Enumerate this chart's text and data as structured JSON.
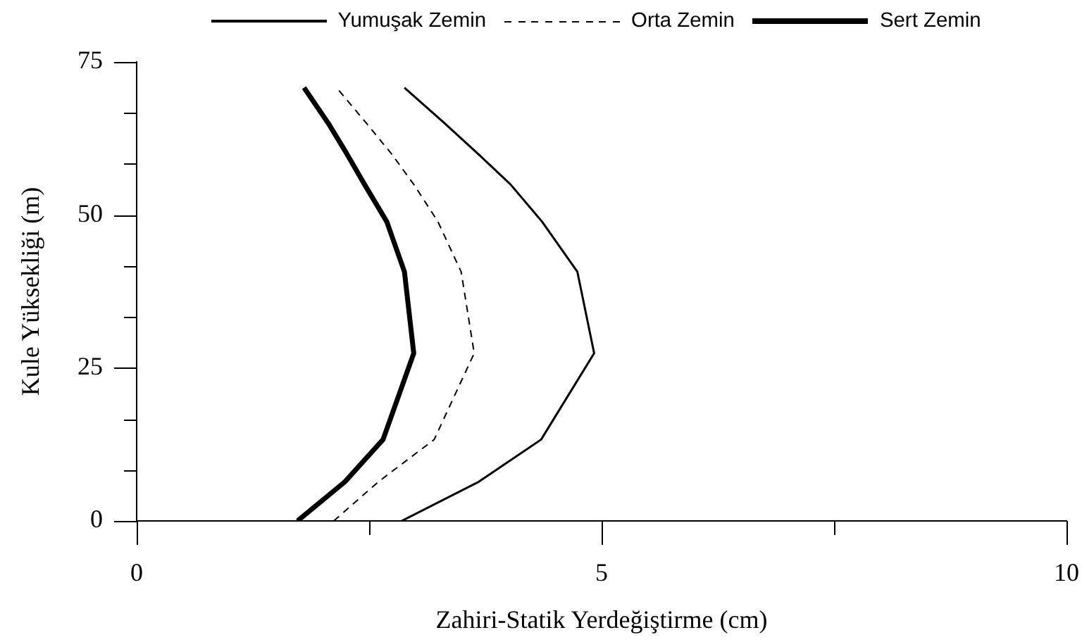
{
  "chart_data": {
    "type": "line",
    "xlabel": "Zahiri-Statik Yerdeğiştirme (cm)",
    "ylabel": "Kule Yüksekliği (m)",
    "xlim": [
      0,
      10
    ],
    "xticks": [
      0,
      {
        "value": 2.5,
        "label": null
      },
      5,
      {
        "value": 7.5,
        "label": null
      },
      10
    ],
    "ylim": [
      0,
      75
    ],
    "yticks": [
      0,
      {
        "value": 8.33,
        "label": null
      },
      {
        "value": 16.67,
        "label": null
      },
      25,
      {
        "value": 33.33,
        "label": null
      },
      {
        "value": 41.67,
        "label": null
      },
      50,
      {
        "value": 58.33,
        "label": null
      },
      {
        "value": 66.67,
        "label": null
      },
      75
    ],
    "legend": "top",
    "series": [
      {
        "name": "Yumuşak Zemin",
        "color": "#000000",
        "line_style": "solid",
        "x": [
          2.85,
          3.68,
          4.35,
          4.92,
          4.74,
          4.36,
          4.02,
          3.67,
          3.31,
          2.88
        ],
        "values": [
          0,
          6.4,
          13.3,
          27.4,
          40.7,
          48.9,
          55,
          60,
          65,
          70.8
        ]
      },
      {
        "name": "Orta Zemin",
        "color": "#000000",
        "line_style": "dashed",
        "x": [
          2.12,
          2.6,
          3.2,
          3.63,
          3.49,
          3.24,
          2.98,
          2.74,
          2.47,
          2.15
        ],
        "values": [
          0,
          6.4,
          13.3,
          27.4,
          40.7,
          48.9,
          55,
          60,
          65,
          70.8
        ]
      },
      {
        "name": "Sert Zemin",
        "color": "#000000",
        "line_style": "solid",
        "x": [
          1.73,
          2.24,
          2.65,
          2.98,
          2.88,
          2.69,
          2.45,
          2.26,
          2.06,
          1.8
        ],
        "values": [
          0,
          6.4,
          13.3,
          27.4,
          40.7,
          48.9,
          55,
          60,
          65,
          70.8
        ]
      }
    ]
  }
}
